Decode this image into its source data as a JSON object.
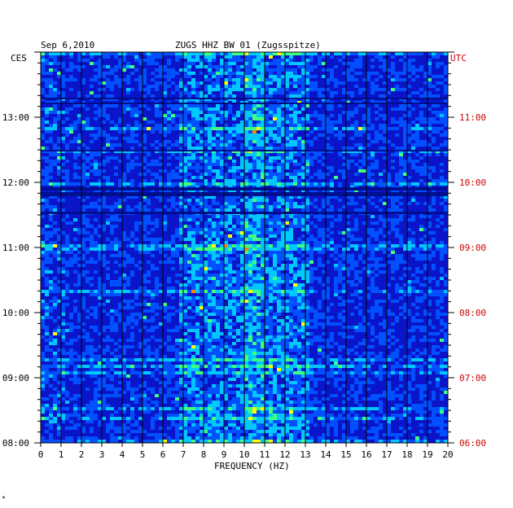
{
  "header": {
    "date": "Sep 6,2010",
    "station": "ZUGS HHZ BW 01 (Zugsspitze)",
    "left_zone": "CES",
    "right_zone": "UTC",
    "footnote": "*"
  },
  "colors": {
    "background_blue": "#0a14c8",
    "left_axis_text": "#000000",
    "right_axis_text": "#cc0000",
    "grid": "#000000"
  },
  "chart_data": {
    "type": "heatmap",
    "title": "ZUGS HHZ BW 01 (Zugsspitze)",
    "xlabel": "FREQUENCY (HZ)",
    "x_ticks": [
      0,
      1,
      2,
      3,
      4,
      5,
      6,
      7,
      8,
      9,
      10,
      11,
      12,
      13,
      14,
      15,
      16,
      17,
      18,
      19,
      20
    ],
    "xlim": [
      0,
      20
    ],
    "y_left_ticks": [
      "13:00",
      "12:00",
      "11:00",
      "10:00",
      "09:00",
      "08:00"
    ],
    "y_right_ticks": [
      "11:00",
      "10:00",
      "09:00",
      "08:00",
      "07:00",
      "06:00"
    ],
    "y_left_label": "CES",
    "y_right_label": "UTC",
    "time_range_ces": [
      "08:00",
      "14:00"
    ],
    "grid": true,
    "colormap": [
      "#0010c8",
      "#0050ff",
      "#00c8ff",
      "#40ff80",
      "#ffff00",
      "#ff8000",
      "#ff0000"
    ]
  }
}
